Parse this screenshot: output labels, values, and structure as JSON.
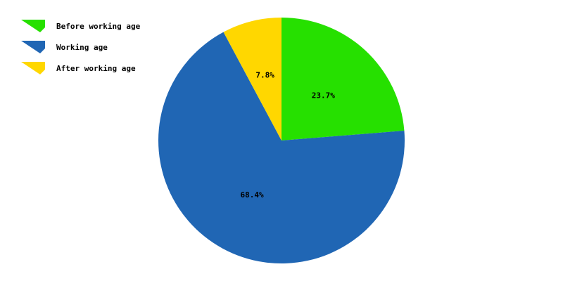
{
  "chart_data": {
    "type": "pie",
    "title": "",
    "series": [
      {
        "name": "Before working age",
        "value": 23.7,
        "label": "23.7%",
        "color": "#26e000"
      },
      {
        "name": "Working age",
        "value": 68.4,
        "label": "68.4%",
        "color": "#2066b4"
      },
      {
        "name": "After working age",
        "value": 7.8,
        "label": "7.8%",
        "color": "#ffd700"
      }
    ],
    "start": "12 o'clock",
    "direction": "clockwise",
    "legend_position": "top-left"
  }
}
